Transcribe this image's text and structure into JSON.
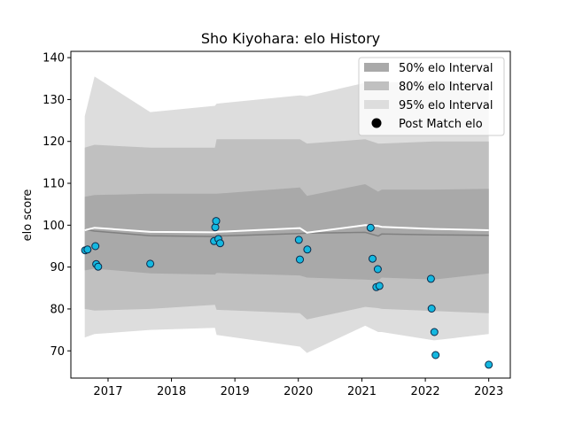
{
  "chart_data": {
    "type": "scatter",
    "title": "Sho Kiyohara: elo History",
    "xlabel": "",
    "ylabel": "elo score",
    "xlim": [
      "2016-06-01",
      "2023-05-05"
    ],
    "ylim": [
      63.5,
      141.5
    ],
    "x_ticks": [
      "2017",
      "2018",
      "2019",
      "2020",
      "2021",
      "2022",
      "2023"
    ],
    "y_ticks": [
      70,
      80,
      90,
      100,
      110,
      120,
      130,
      140
    ],
    "grid": false,
    "legend_position": "top-right",
    "legend": [
      {
        "label": "50% elo Interval",
        "kind": "band50"
      },
      {
        "label": "80% elo Interval",
        "kind": "band80"
      },
      {
        "label": "95% elo Interval",
        "kind": "band95"
      },
      {
        "label": "Post Match elo",
        "kind": "marker"
      }
    ],
    "colors": {
      "band50": "#a9a9a9",
      "band80": "#c0c0c0",
      "band95": "#dddddd",
      "mean_line": "#808080",
      "median_line": "#ffffff",
      "point_fill": "#14b8e0",
      "point_edge": "#0c2a4a"
    },
    "interval_series": [
      {
        "date": "2016-08-20",
        "mean": 99.0,
        "median": 98.8,
        "lo50": 89.2,
        "hi50": 106.8,
        "lo80": 80.0,
        "hi80": 118.5,
        "lo95": 73.2,
        "hi95": 126.0
      },
      {
        "date": "2016-10-15",
        "mean": 98.6,
        "median": 99.4,
        "lo50": 89.6,
        "hi50": 107.2,
        "lo80": 79.6,
        "hi80": 119.2,
        "lo95": 74.0,
        "hi95": 135.5
      },
      {
        "date": "2017-09-01",
        "mean": 97.5,
        "median": 98.4,
        "lo50": 88.5,
        "hi50": 107.5,
        "lo80": 80.0,
        "hi80": 118.5,
        "lo95": 75.0,
        "hi95": 127.0
      },
      {
        "date": "2018-09-08",
        "mean": 97.3,
        "median": 98.3,
        "lo50": 88.2,
        "hi50": 107.5,
        "lo80": 81.0,
        "hi80": 118.5,
        "lo95": 75.5,
        "hi95": 128.5
      },
      {
        "date": "2018-09-18",
        "mean": 97.4,
        "median": 98.4,
        "lo50": 88.6,
        "hi50": 107.5,
        "lo80": 79.8,
        "hi80": 120.5,
        "lo95": 73.8,
        "hi95": 129.0
      },
      {
        "date": "2020-01-10",
        "mean": 98.0,
        "median": 99.3,
        "lo50": 88.0,
        "hi50": 109.0,
        "lo80": 79.0,
        "hi80": 120.5,
        "lo95": 71.0,
        "hi95": 131.0
      },
      {
        "date": "2020-02-20",
        "mean": 98.1,
        "median": 98.2,
        "lo50": 87.5,
        "hi50": 107.0,
        "lo80": 77.5,
        "hi80": 119.5,
        "lo95": 69.5,
        "hi95": 130.8
      },
      {
        "date": "2021-01-20",
        "mean": 98.3,
        "median": 100.0,
        "lo50": 87.0,
        "hi50": 109.8,
        "lo80": 80.5,
        "hi80": 120.5,
        "lo95": 76.0,
        "hi95": 134.0
      },
      {
        "date": "2021-04-05",
        "mean": 97.4,
        "median": 99.8,
        "lo50": 86.8,
        "hi50": 108.0,
        "lo80": 80.2,
        "hi80": 119.5,
        "lo95": 74.5,
        "hi95": 133.5
      },
      {
        "date": "2021-04-25",
        "mean": 97.9,
        "median": 99.6,
        "lo50": 87.5,
        "hi50": 108.5,
        "lo80": 80.0,
        "hi80": 119.5,
        "lo95": 74.5,
        "hi95": 134.0
      },
      {
        "date": "2022-02-20",
        "mean": 97.7,
        "median": 99.1,
        "lo50": 87.0,
        "hi50": 108.5,
        "lo80": 79.5,
        "hi80": 120.0,
        "lo95": 72.5,
        "hi95": 134.5
      },
      {
        "date": "2023-01-01",
        "mean": 97.6,
        "median": 98.8,
        "lo50": 88.5,
        "hi50": 108.7,
        "lo80": 79.0,
        "hi80": 120.0,
        "lo95": 74.0,
        "hi95": 134.0
      }
    ],
    "points": [
      {
        "date": "2016-08-22",
        "elo": 94.0
      },
      {
        "date": "2016-09-05",
        "elo": 94.2
      },
      {
        "date": "2016-10-20",
        "elo": 95.0
      },
      {
        "date": "2016-10-25",
        "elo": 90.7
      },
      {
        "date": "2016-11-05",
        "elo": 90.1
      },
      {
        "date": "2017-09-01",
        "elo": 90.8
      },
      {
        "date": "2018-09-03",
        "elo": 96.2
      },
      {
        "date": "2018-09-10",
        "elo": 99.5
      },
      {
        "date": "2018-09-15",
        "elo": 101.0
      },
      {
        "date": "2018-09-28",
        "elo": 96.7
      },
      {
        "date": "2018-10-08",
        "elo": 95.7
      },
      {
        "date": "2020-01-04",
        "elo": 96.5
      },
      {
        "date": "2020-01-10",
        "elo": 91.8
      },
      {
        "date": "2020-02-22",
        "elo": 94.2
      },
      {
        "date": "2021-02-20",
        "elo": 99.4
      },
      {
        "date": "2021-03-03",
        "elo": 92.0
      },
      {
        "date": "2021-03-25",
        "elo": 85.2
      },
      {
        "date": "2021-04-02",
        "elo": 89.5
      },
      {
        "date": "2021-04-12",
        "elo": 85.5
      },
      {
        "date": "2022-02-02",
        "elo": 87.2
      },
      {
        "date": "2022-02-06",
        "elo": 80.1
      },
      {
        "date": "2022-02-22",
        "elo": 74.5
      },
      {
        "date": "2022-03-01",
        "elo": 69.0
      },
      {
        "date": "2023-01-01",
        "elo": 66.7
      }
    ]
  }
}
